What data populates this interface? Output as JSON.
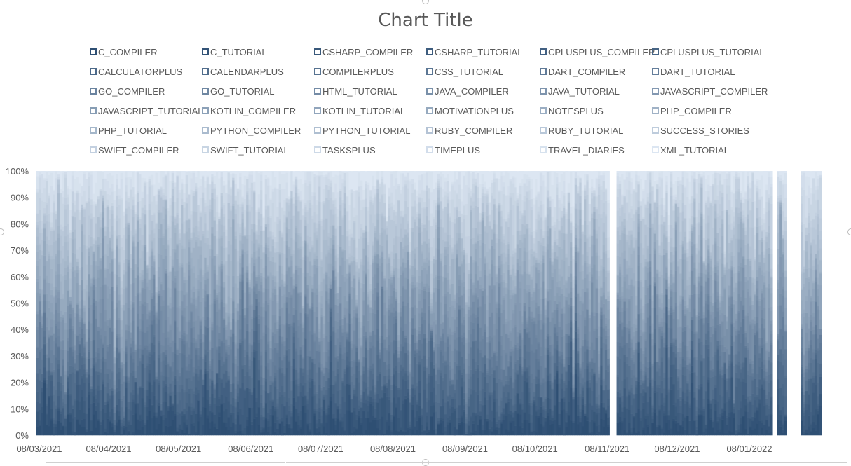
{
  "chart_data": {
    "type": "bar",
    "stacking": "percent",
    "title": "Chart Title",
    "legend_position": "top",
    "ylim": [
      0,
      100
    ],
    "y_ticks": [
      "0%",
      "10%",
      "20%",
      "30%",
      "40%",
      "50%",
      "60%",
      "70%",
      "80%",
      "90%",
      "100%"
    ],
    "x_ticks": [
      "08/03/2021",
      "08/04/2021",
      "08/05/2021",
      "08/06/2021",
      "08/07/2021",
      "08/08/2021",
      "08/09/2021",
      "08/10/2021",
      "08/11/2021",
      "08/12/2021",
      "08/01/2022"
    ],
    "x_range": [
      "08/03/2021",
      "08/02/2022"
    ],
    "gaps": [
      [
        "09/11/2021",
        "11/11/2021"
      ],
      [
        "18/01/2022",
        "19/01/2022"
      ],
      [
        "24/01/2022",
        "29/01/2022"
      ]
    ],
    "color_range": [
      "#2E4F73",
      "#DCE6F2"
    ],
    "series": [
      {
        "name": "C_COMPILER"
      },
      {
        "name": "C_TUTORIAL"
      },
      {
        "name": "CSHARP_COMPILER"
      },
      {
        "name": "CSHARP_TUTORIAL"
      },
      {
        "name": "CPLUSPLUS_COMPILER"
      },
      {
        "name": "CPLUSPLUS_TUTORIAL"
      },
      {
        "name": "CALCULATORPLUS"
      },
      {
        "name": "CALENDARPLUS"
      },
      {
        "name": "COMPILERPLUS"
      },
      {
        "name": "CSS_TUTORIAL"
      },
      {
        "name": "DART_COMPILER"
      },
      {
        "name": "DART_TUTORIAL"
      },
      {
        "name": "GO_COMPILER"
      },
      {
        "name": "GO_TUTORIAL"
      },
      {
        "name": "HTML_TUTORIAL"
      },
      {
        "name": "JAVA_COMPILER"
      },
      {
        "name": "JAVA_TUTORIAL"
      },
      {
        "name": "JAVASCRIPT_COMPILER"
      },
      {
        "name": "JAVASCRIPT_TUTORIAL"
      },
      {
        "name": "KOTLIN_COMPILER"
      },
      {
        "name": "KOTLIN_TUTORIAL"
      },
      {
        "name": "MOTIVATIONPLUS"
      },
      {
        "name": "NOTESPLUS"
      },
      {
        "name": "PHP_COMPILER"
      },
      {
        "name": "PHP_TUTORIAL"
      },
      {
        "name": "PYTHON_COMPILER"
      },
      {
        "name": "PYTHON_TUTORIAL"
      },
      {
        "name": "RUBY_COMPILER"
      },
      {
        "name": "RUBY_TUTORIAL"
      },
      {
        "name": "SUCCESS_STORIES"
      },
      {
        "name": "SWIFT_COMPILER"
      },
      {
        "name": "SWIFT_TUTORIAL"
      },
      {
        "name": "TASKSPLUS"
      },
      {
        "name": "TIMEPLUS"
      },
      {
        "name": "TRAVEL_DIARIES"
      },
      {
        "name": "XML_TUTORIAL"
      }
    ]
  }
}
